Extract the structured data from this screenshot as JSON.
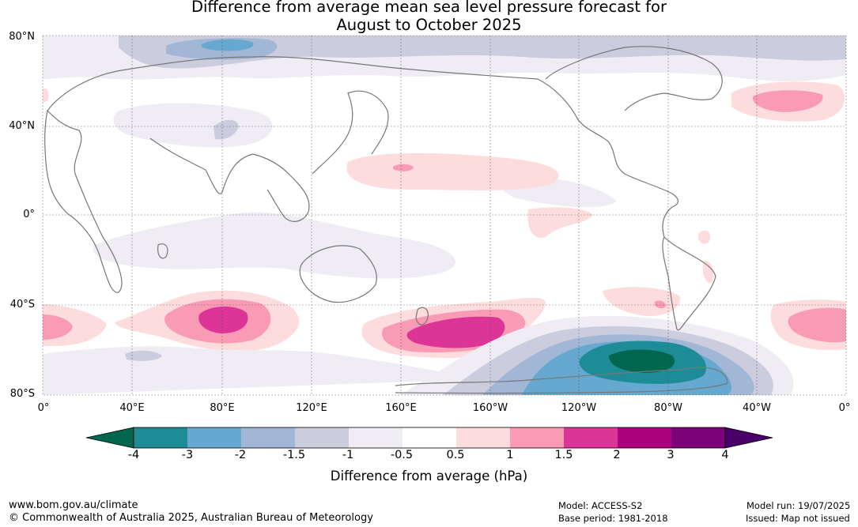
{
  "title": {
    "line1": "Difference from average mean sea level pressure forecast for",
    "line2": "August to October 2025"
  },
  "axes": {
    "lat_labels": [
      "80°N",
      "40°N",
      "0°",
      "40°S",
      "80°S"
    ],
    "lon_labels": [
      "0°",
      "40°E",
      "80°E",
      "120°E",
      "160°E",
      "160°W",
      "120°W",
      "80°W",
      "40°W",
      "0°"
    ]
  },
  "colorbar": {
    "ticks": [
      "-4",
      "-3",
      "-2",
      "-1.5",
      "-1",
      "-0.5",
      "0.5",
      "1",
      "1.5",
      "2",
      "3",
      "4"
    ],
    "colors": {
      "below_min": "#00664f",
      "bins": [
        "#1e8c96",
        "#66a8cf",
        "#a2b7d6",
        "#ccccdf",
        "#efecf3",
        "#ffffff",
        "#fddcdd",
        "#f99bb4",
        "#dd3497",
        "#ae017e",
        "#7a0177"
      ],
      "above_max": "#49006a"
    },
    "label": "Difference from average (hPa)"
  },
  "footer": {
    "url": "www.bom.gov.au/climate",
    "copyright": "© Commonwealth of Australia 2025, Australian Bureau of Meteorology",
    "model": "Model: ACCESS-S2",
    "base_period": "Base period: 1981-2018",
    "model_run": "Model run: 19/07/2025",
    "issued": "Issued: Map not issued"
  }
}
